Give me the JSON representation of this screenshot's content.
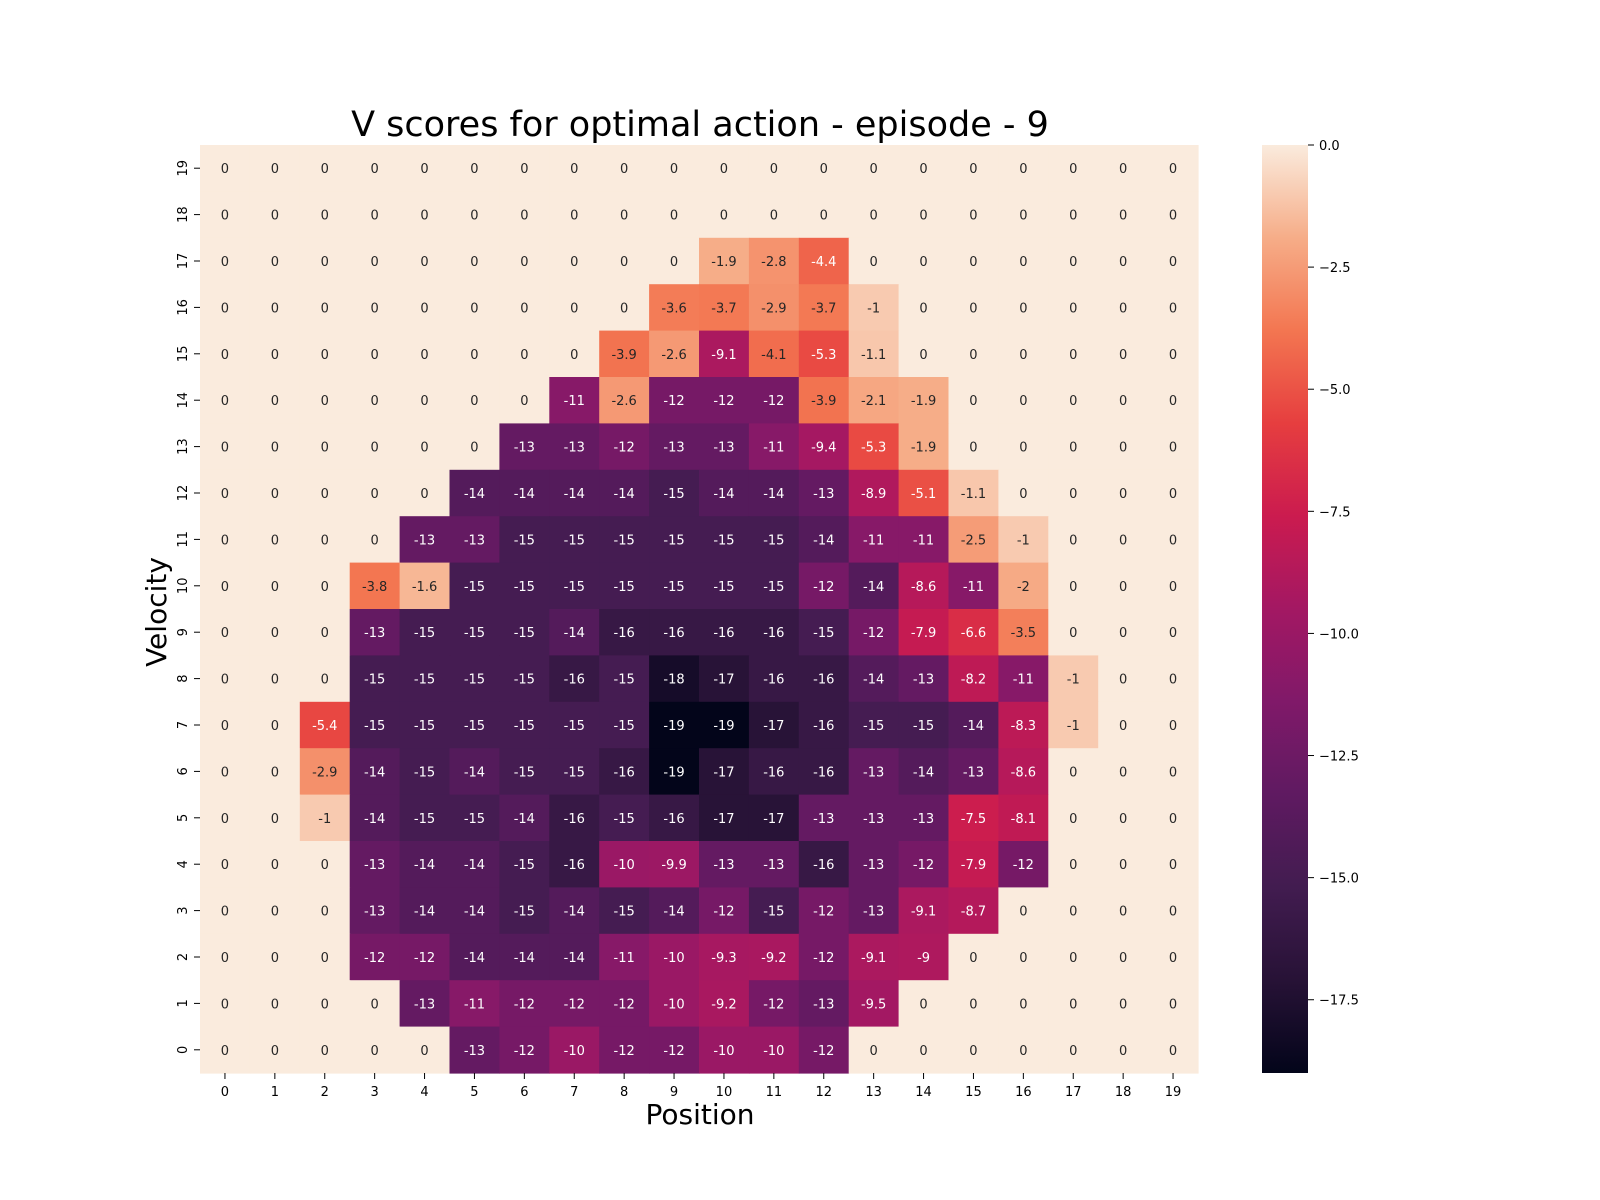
{
  "chart_data": {
    "type": "heatmap",
    "title": "V scores for optimal action - episode - 9",
    "xlabel": "Position",
    "ylabel": "Velocity",
    "x_categories": [
      "0",
      "1",
      "2",
      "3",
      "4",
      "5",
      "6",
      "7",
      "8",
      "9",
      "10",
      "11",
      "12",
      "13",
      "14",
      "15",
      "16",
      "17",
      "18",
      "19"
    ],
    "y_categories_top_to_bottom": [
      "19",
      "18",
      "17",
      "16",
      "15",
      "14",
      "13",
      "12",
      "11",
      "10",
      "9",
      "8",
      "7",
      "6",
      "5",
      "4",
      "3",
      "2",
      "1",
      "0"
    ],
    "values_top_to_bottom": [
      [
        0,
        0,
        0,
        0,
        0,
        0,
        0,
        0,
        0,
        0,
        0,
        0,
        0,
        0,
        0,
        0,
        0,
        0,
        0,
        0
      ],
      [
        0,
        0,
        0,
        0,
        0,
        0,
        0,
        0,
        0,
        0,
        0,
        0,
        0,
        0,
        0,
        0,
        0,
        0,
        0,
        0
      ],
      [
        0,
        0,
        0,
        0,
        0,
        0,
        0,
        0,
        0,
        0,
        -1.9,
        -2.8,
        -4.4,
        0,
        0,
        0,
        0,
        0,
        0,
        0
      ],
      [
        0,
        0,
        0,
        0,
        0,
        0,
        0,
        0,
        0,
        -3.6,
        -3.7,
        -2.9,
        -3.7,
        -1,
        0,
        0,
        0,
        0,
        0,
        0
      ],
      [
        0,
        0,
        0,
        0,
        0,
        0,
        0,
        0,
        -3.9,
        -2.6,
        -9.1,
        -4.1,
        -5.3,
        -1.1,
        0,
        0,
        0,
        0,
        0,
        0
      ],
      [
        0,
        0,
        0,
        0,
        0,
        0,
        0,
        -11,
        -2.6,
        -12,
        -12,
        -12,
        -3.9,
        -2.1,
        -1.9,
        0,
        0,
        0,
        0,
        0
      ],
      [
        0,
        0,
        0,
        0,
        0,
        0,
        -13,
        -13,
        -12,
        -13,
        -13,
        -11,
        -9.4,
        -5.3,
        -1.9,
        0,
        0,
        0,
        0,
        0
      ],
      [
        0,
        0,
        0,
        0,
        0,
        -14,
        -14,
        -14,
        -14,
        -15,
        -14,
        -14,
        -13,
        -8.9,
        -5.1,
        -1.1,
        0,
        0,
        0,
        0
      ],
      [
        0,
        0,
        0,
        0,
        -13,
        -13,
        -15,
        -15,
        -15,
        -15,
        -15,
        -15,
        -14,
        -11,
        -11,
        -2.5,
        -1,
        0,
        0,
        0
      ],
      [
        0,
        0,
        0,
        -3.8,
        -1.6,
        -15,
        -15,
        -15,
        -15,
        -15,
        -15,
        -15,
        -12,
        -14,
        -8.6,
        -11,
        -2,
        0,
        0,
        0
      ],
      [
        0,
        0,
        0,
        -13,
        -15,
        -15,
        -15,
        -14,
        -16,
        -16,
        -16,
        -16,
        -15,
        -12,
        -7.9,
        -6.6,
        -3.5,
        0,
        0,
        0
      ],
      [
        0,
        0,
        0,
        -15,
        -15,
        -15,
        -15,
        -16,
        -15,
        -18,
        -17,
        -16,
        -16,
        -14,
        -13,
        -8.2,
        -11,
        -1,
        0,
        0
      ],
      [
        0,
        0,
        -5.4,
        -15,
        -15,
        -15,
        -15,
        -15,
        -15,
        -19,
        -19,
        -17,
        -16,
        -15,
        -15,
        -14,
        -8.3,
        -1,
        0,
        0
      ],
      [
        0,
        0,
        -2.9,
        -14,
        -15,
        -14,
        -15,
        -15,
        -16,
        -19,
        -17,
        -16,
        -16,
        -13,
        -14,
        -13,
        -8.6,
        0,
        0,
        0
      ],
      [
        0,
        0,
        -1,
        -14,
        -15,
        -15,
        -14,
        -16,
        -15,
        -16,
        -17,
        -17,
        -13,
        -13,
        -13,
        -7.5,
        -8.1,
        0,
        0,
        0
      ],
      [
        0,
        0,
        0,
        -13,
        -14,
        -14,
        -15,
        -16,
        -10,
        -9.9,
        -13,
        -13,
        -16,
        -13,
        -12,
        -7.9,
        -12,
        0,
        0,
        0
      ],
      [
        0,
        0,
        0,
        -13,
        -14,
        -14,
        -15,
        -14,
        -15,
        -14,
        -12,
        -15,
        -12,
        -13,
        -9.1,
        -8.7,
        0,
        0,
        0,
        0
      ],
      [
        0,
        0,
        0,
        -12,
        -12,
        -14,
        -14,
        -14,
        -11,
        -10,
        -9.3,
        -9.2,
        -12,
        -9.1,
        -9,
        0,
        0,
        0,
        0,
        0
      ],
      [
        0,
        0,
        0,
        0,
        -13,
        -11,
        -12,
        -12,
        -12,
        -10,
        -9.2,
        -12,
        -13,
        -9.5,
        0,
        0,
        0,
        0,
        0,
        0
      ],
      [
        0,
        0,
        0,
        0,
        0,
        -13,
        -12,
        -10,
        -12,
        -12,
        -10,
        -10,
        -12,
        0,
        0,
        0,
        0,
        0,
        0,
        0
      ]
    ],
    "colorbar": {
      "range": [
        -19,
        0
      ],
      "ticks": [
        0,
        -2.5,
        -5,
        -7.5,
        -10,
        -12.5,
        -15,
        -17.5
      ],
      "tick_labels": [
        "0.0",
        "−2.5",
        "−5.0",
        "−7.5",
        "−10.0",
        "−12.5",
        "−15.0",
        "−17.5"
      ],
      "colormap": "rocket"
    },
    "legend": "colorbar-right",
    "grid": false
  }
}
